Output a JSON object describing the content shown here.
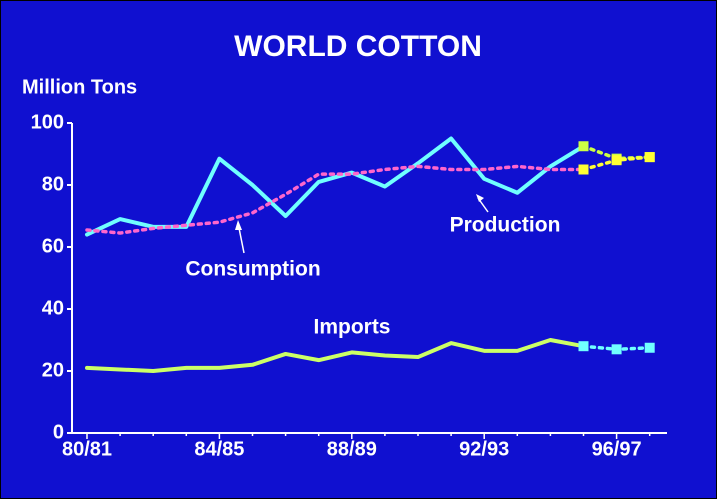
{
  "chart_data": {
    "type": "line",
    "title": "WORLD COTTON",
    "y_label": "Million Tons",
    "categories": [
      "80/81",
      null,
      null,
      null,
      "84/85",
      null,
      null,
      null,
      "88/89",
      null,
      null,
      null,
      "92/93",
      null,
      null,
      null,
      "96/97",
      null
    ],
    "projection_start": 15,
    "ylim": [
      0,
      100
    ],
    "yticks": [
      0,
      20,
      40,
      60,
      80,
      100
    ],
    "series": [
      {
        "name": "Production",
        "color": "#70ffff",
        "dashed": false,
        "projection_color": "#ccff44",
        "marker_color": "#ccff44",
        "values": [
          64,
          69,
          66.5,
          66.5,
          88.5,
          80,
          70,
          81,
          84,
          79.5,
          87,
          95,
          82,
          77.5,
          86,
          92.5,
          88.5,
          89
        ]
      },
      {
        "name": "Consumption",
        "color": "#ff66cc",
        "dashed": true,
        "projection_color": "#ffff33",
        "marker_color": "#ffff33",
        "values": [
          65.5,
          64.5,
          66,
          67,
          68,
          71,
          77,
          83.5,
          83.5,
          85,
          86,
          85,
          85,
          86,
          85,
          85,
          88,
          89
        ]
      },
      {
        "name": "Imports",
        "color": "#ccff66",
        "dashed": false,
        "projection_color": "#70ffff",
        "marker_color": "#70ffff",
        "values": [
          21,
          20.5,
          20,
          21,
          21,
          22,
          25.5,
          23.5,
          26,
          25,
          24.5,
          29,
          26.5,
          26.5,
          30,
          28,
          27,
          27.5
        ]
      }
    ]
  }
}
